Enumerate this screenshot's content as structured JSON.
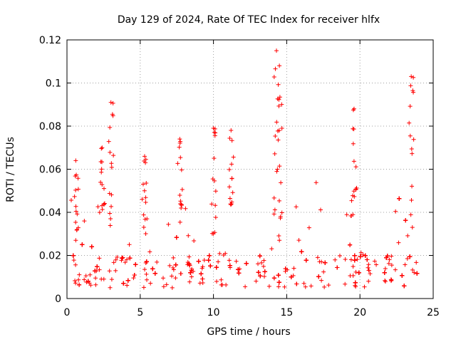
{
  "chart_data": {
    "type": "scatter",
    "title": "Day 129 of 2024, Rate Of TEC Index for receiver hlfx",
    "xlabel": "GPS time / hours",
    "ylabel": "ROTI / TECUs",
    "xlim": [
      0,
      25
    ],
    "ylim": [
      0,
      0.12
    ],
    "x_ticks": [
      0,
      5,
      10,
      15,
      20,
      25
    ],
    "x_tick_labels": [
      "0",
      "5",
      "10",
      "15",
      "20",
      "25"
    ],
    "y_ticks": [
      0,
      0.02,
      0.04,
      0.06,
      0.08,
      0.1,
      0.12
    ],
    "y_tick_labels": [
      "0",
      "0.02",
      "0.04",
      "0.06",
      "0.08",
      "0.1",
      "0.12"
    ],
    "grid": true,
    "marker": "+",
    "series": [
      {
        "name": "ROTI",
        "color": "#ff0000",
        "x_range": [
          0,
          24
        ],
        "baseline_range": [
          0.005,
          0.02
        ],
        "typical_max": 0.045,
        "spikes": [
          {
            "x": 0.6,
            "y": 0.064
          },
          {
            "x": 2.4,
            "y": 0.07
          },
          {
            "x": 3.0,
            "y": 0.091
          },
          {
            "x": 5.3,
            "y": 0.066
          },
          {
            "x": 7.7,
            "y": 0.074
          },
          {
            "x": 10.0,
            "y": 0.079
          },
          {
            "x": 11.2,
            "y": 0.078
          },
          {
            "x": 14.3,
            "y": 0.115
          },
          {
            "x": 14.5,
            "y": 0.108
          },
          {
            "x": 19.6,
            "y": 0.088
          },
          {
            "x": 23.5,
            "y": 0.103
          }
        ]
      }
    ]
  }
}
